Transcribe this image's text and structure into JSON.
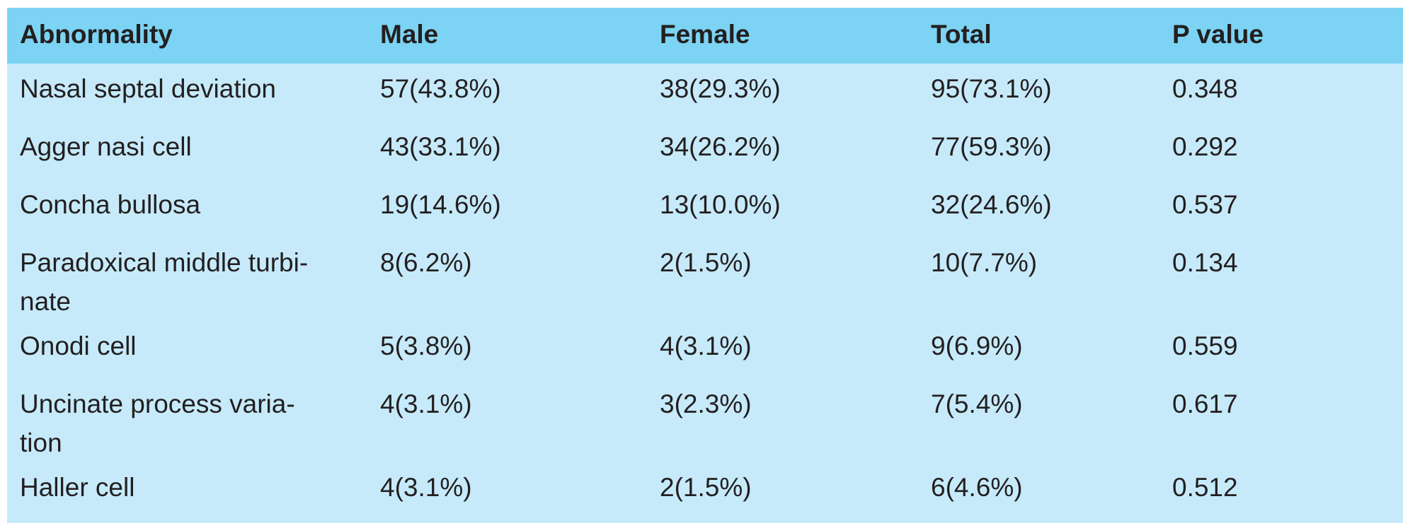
{
  "colors": {
    "page_bg": "#ffffff",
    "header_bg": "#7cd3f3",
    "body_bg": "#c6eafa",
    "text": "#231f20"
  },
  "table": {
    "columns": [
      "Abnormality",
      "Male",
      "Female",
      "Total",
      "P value"
    ],
    "rows": [
      {
        "abnormality": "Nasal septal deviation",
        "male": "57(43.8%)",
        "female": "38(29.3%)",
        "total": "95(73.1%)",
        "p_value": "0.348"
      },
      {
        "abnormality": "Agger nasi cell",
        "male": "43(33.1%)",
        "female": "34(26.2%)",
        "total": "77(59.3%)",
        "p_value": "0.292"
      },
      {
        "abnormality": "Concha bullosa",
        "male": "19(14.6%)",
        "female": "13(10.0%)",
        "total": "32(24.6%)",
        "p_value": "0.537"
      },
      {
        "abnormality": "Paradoxical middle turbi-\nnate",
        "male": "8(6.2%)",
        "female": "2(1.5%)",
        "total": "10(7.7%)",
        "p_value": "0.134"
      },
      {
        "abnormality": "Onodi cell",
        "male": "5(3.8%)",
        "female": "4(3.1%)",
        "total": "9(6.9%)",
        "p_value": "0.559"
      },
      {
        "abnormality": "Uncinate process varia-\ntion",
        "male": "4(3.1%)",
        "female": "3(2.3%)",
        "total": "7(5.4%)",
        "p_value": "0.617"
      },
      {
        "abnormality": "Haller cell",
        "male": "4(3.1%)",
        "female": "2(1.5%)",
        "total": "6(4.6%)",
        "p_value": "0.512"
      }
    ]
  },
  "chart_data": {
    "type": "table",
    "columns": [
      "Abnormality",
      "Male",
      "Female",
      "Total",
      "P value"
    ],
    "rows": [
      [
        "Nasal septal deviation",
        "57(43.8%)",
        "38(29.3%)",
        "95(73.1%)",
        "0.348"
      ],
      [
        "Agger nasi cell",
        "43(33.1%)",
        "34(26.2%)",
        "77(59.3%)",
        "0.292"
      ],
      [
        "Concha bullosa",
        "19(14.6%)",
        "13(10.0%)",
        "32(24.6%)",
        "0.537"
      ],
      [
        "Paradoxical middle turbinate",
        "8(6.2%)",
        "2(1.5%)",
        "10(7.7%)",
        "0.134"
      ],
      [
        "Onodi cell",
        "5(3.8%)",
        "4(3.1%)",
        "9(6.9%)",
        "0.559"
      ],
      [
        "Uncinate process variation",
        "4(3.1%)",
        "3(2.3%)",
        "7(5.4%)",
        "0.617"
      ],
      [
        "Haller cell",
        "4(3.1%)",
        "2(1.5%)",
        "6(4.6%)",
        "0.512"
      ]
    ]
  }
}
